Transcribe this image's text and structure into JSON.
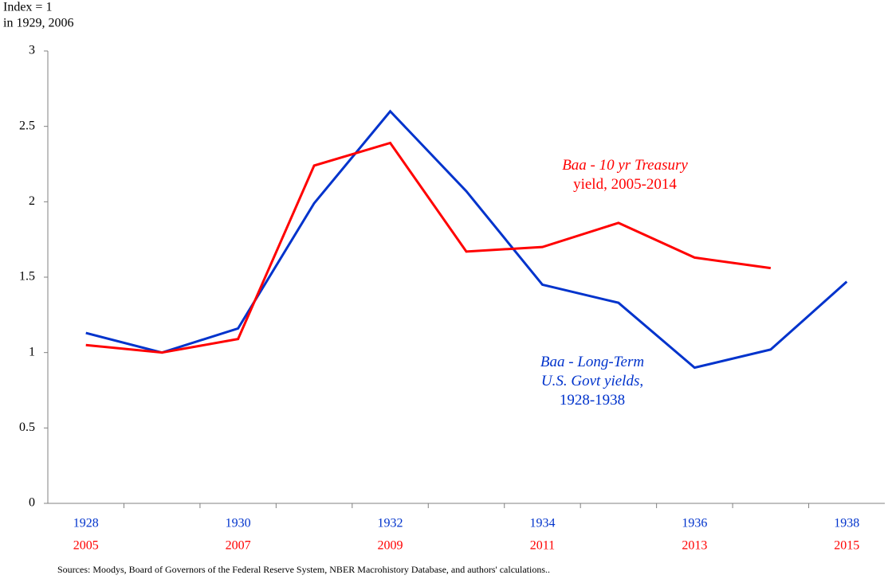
{
  "chart_data": {
    "type": "line",
    "y_label": [
      "Index = 1",
      "in 1929, 2006"
    ],
    "categories": [
      "1928",
      null,
      "1930",
      null,
      "1932",
      null,
      "1934",
      null,
      "1936",
      null,
      "1938"
    ],
    "categories2": [
      "2005",
      null,
      "2007",
      null,
      "2009",
      null,
      "2011",
      null,
      "2013",
      null,
      "2015"
    ],
    "category_colors": [
      "#0033cc",
      "#ff0000"
    ],
    "series": [
      {
        "color": "#0033cc",
        "values": [
          1.13,
          1.0,
          1.16,
          1.99,
          2.6,
          2.07,
          1.45,
          1.33,
          0.9,
          1.02,
          1.47
        ]
      },
      {
        "color": "#ff0000",
        "values": [
          1.05,
          1.0,
          1.09,
          2.24,
          2.39,
          1.67,
          1.7,
          1.86,
          1.63,
          1.56,
          null
        ]
      }
    ],
    "ylim": [
      0,
      3
    ],
    "yticks": [
      0,
      0.5,
      1,
      1.5,
      2,
      2.5,
      3
    ],
    "annotations": [
      {
        "color": "#ff0000",
        "lines": [
          [
            {
              "text": "Baa - 10 yr Treasury",
              "italic": true
            }
          ],
          [
            {
              "text": "yield, 2005-2014"
            }
          ]
        ]
      },
      {
        "color": "#0033cc",
        "lines": [
          [
            {
              "text": "Baa - Long-Term",
              "italic": true
            }
          ],
          [
            {
              "text": "U.S. Govt yields",
              "italic": true
            },
            {
              "text": ","
            }
          ],
          [
            {
              "text": "1928-1938"
            }
          ]
        ]
      }
    ],
    "source": "Sources: Moodys, Board of Governors of the Federal Reserve System, NBER Macrohistory Database, and authors' calculations.."
  }
}
